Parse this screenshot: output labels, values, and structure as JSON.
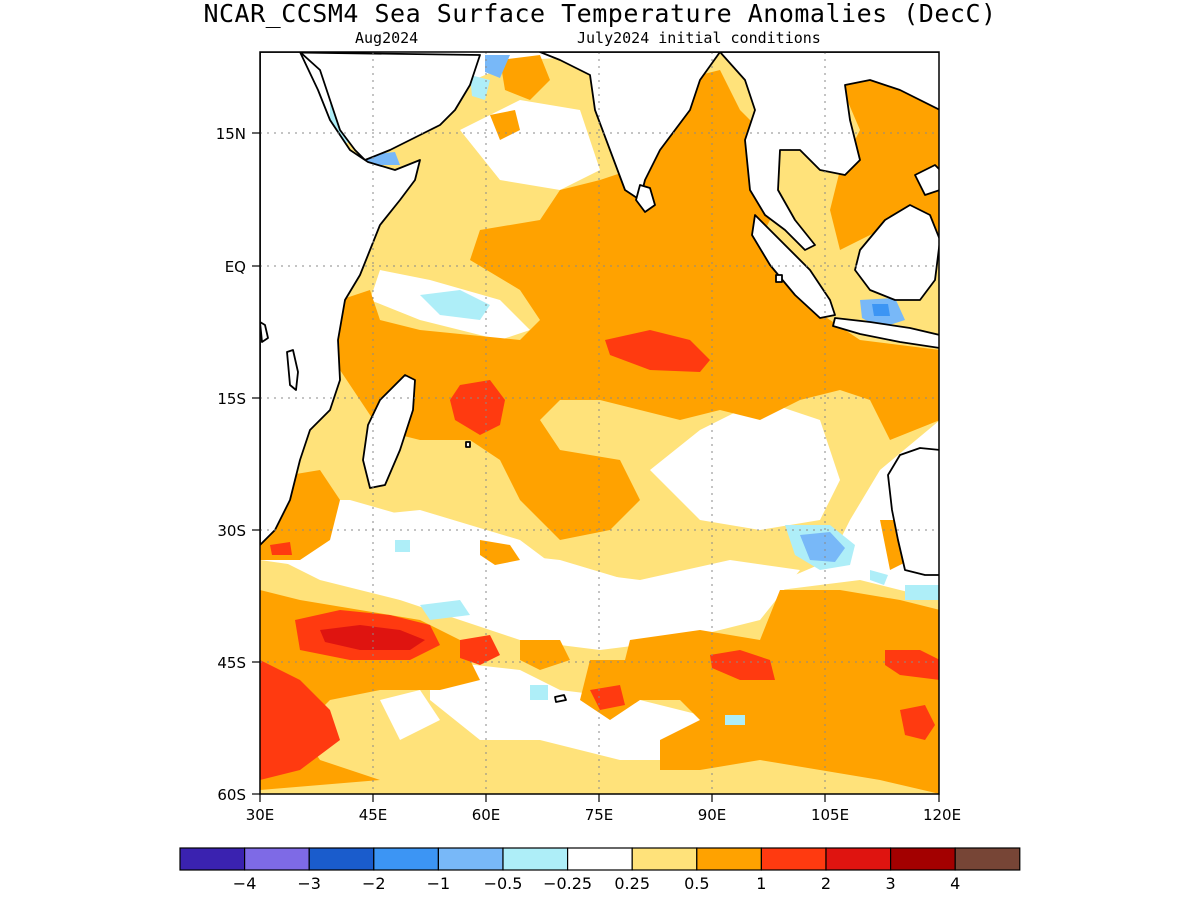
{
  "title": "NCAR_CCSM4 Sea Surface Temperature Anomalies (DecC)",
  "subtitle_month": "Aug2024",
  "subtitle_init": "July2024 initial conditions",
  "map": {
    "lon_range": [
      30,
      120
    ],
    "lat_range": [
      -60,
      24
    ],
    "x_ticks": [
      "30E",
      "45E",
      "60E",
      "75E",
      "90E",
      "105E",
      "120E"
    ],
    "y_ticks": [
      "15N",
      "EQ",
      "15S",
      "30S",
      "45S",
      "60S"
    ],
    "grid": true
  },
  "colorbar": {
    "labels": [
      "−4",
      "−3",
      "−2",
      "−1",
      "−0.5",
      "−0.25",
      "0.25",
      "0.5",
      "1",
      "2",
      "3",
      "4"
    ],
    "colors": [
      "#3a22b0",
      "#7e6ae6",
      "#1a5ccc",
      "#3c95f4",
      "#78b8f8",
      "#aeeef8",
      "#ffffff",
      "#ffe27a",
      "#ffa200",
      "#ff3a10",
      "#df1410",
      "#a30000",
      "#774536"
    ]
  },
  "chart_data": {
    "type": "heatmap",
    "variable": "Sea Surface Temperature Anomalies (DecC)",
    "x_range": [
      "30E",
      "120E"
    ],
    "y_range": [
      "60S",
      "24N"
    ],
    "levels": [
      -4,
      -3,
      -2,
      -1,
      -0.5,
      -0.25,
      0.25,
      0.5,
      1,
      2,
      3,
      4
    ]
  }
}
